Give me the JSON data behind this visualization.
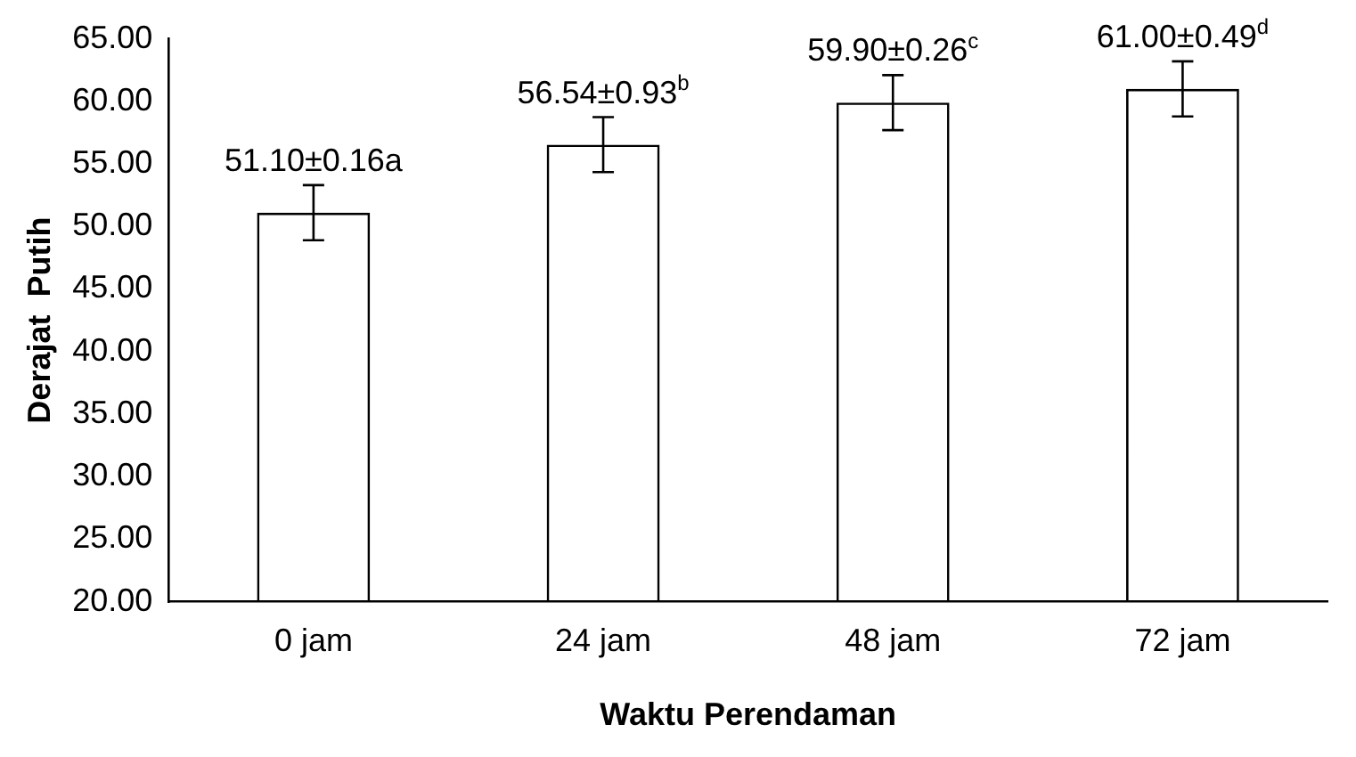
{
  "chart_data": {
    "type": "bar",
    "xlabel": "Waktu Perendaman",
    "ylabel": "Derajat  Putih",
    "categories": [
      "0 jam",
      "24 jam",
      "48 jam",
      "72 jam"
    ],
    "values": [
      51.1,
      56.54,
      59.9,
      61.0
    ],
    "errors": [
      2.2,
      2.2,
      2.2,
      2.2
    ],
    "value_labels": [
      "51.10±0.16a",
      "56.54±0.93$^{b}$",
      "59.90±0.26$^{c}$",
      "61.00±0.49$^{d}$"
    ],
    "color": "#000000",
    "ylim": [
      20,
      65
    ],
    "yticks": [
      {
        "value": 20,
        "label": "20.00"
      },
      {
        "value": 25,
        "label": "25.00"
      },
      {
        "value": 30,
        "label": "30.00"
      },
      {
        "value": 35,
        "label": "35.00"
      },
      {
        "value": 40,
        "label": "40.00"
      },
      {
        "value": 45,
        "label": "45.00"
      },
      {
        "value": 50,
        "label": "50.00"
      },
      {
        "value": 55,
        "label": "55.00"
      },
      {
        "value": 60,
        "label": "60.00"
      },
      {
        "value": 65,
        "label": "65.00"
      }
    ],
    "grid": false,
    "legend": false
  }
}
